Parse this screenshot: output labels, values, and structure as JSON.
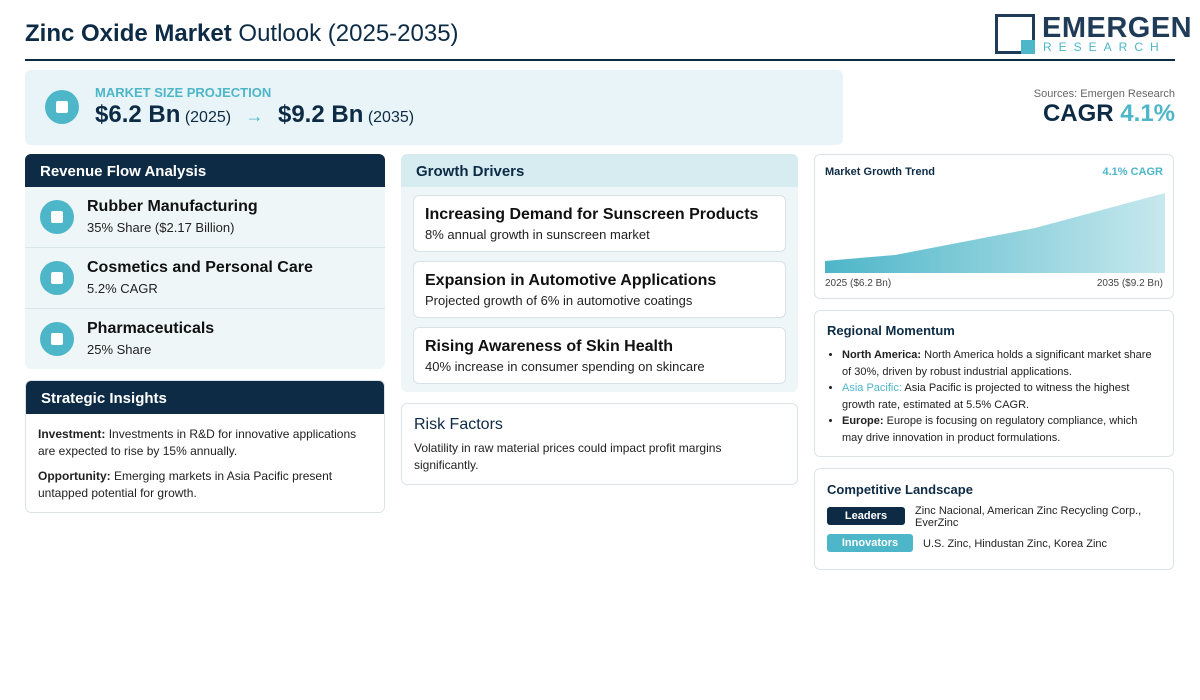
{
  "header": {
    "title_bold": "Zinc Oxide Market",
    "title_rest": "Outlook (2025-2035)"
  },
  "logo": {
    "name": "EMERGEN",
    "tagline": "RESEARCH"
  },
  "projection": {
    "label": "MARKET SIZE PROJECTION",
    "start_value": "$6.2 Bn",
    "start_year": "(2025)",
    "arrow": "→",
    "end_value": "$9.2 Bn",
    "end_year": "(2035)"
  },
  "summary": {
    "sources": "Sources: Emergen Research",
    "cagr_label": "CAGR",
    "cagr_value": "4.1%"
  },
  "revenue": {
    "title": "Revenue Flow Analysis",
    "items": [
      {
        "name": "Rubber Manufacturing",
        "detail": "35% Share ($2.17 Billion)"
      },
      {
        "name": "Cosmetics and Personal Care",
        "detail": "5.2% CAGR"
      },
      {
        "name": "Pharmaceuticals",
        "detail": "25% Share"
      }
    ]
  },
  "insights": {
    "title": "Strategic Insights",
    "items": [
      {
        "label": "Investment:",
        "text": "Investments in R&D for innovative applications are expected to rise by 15% annually."
      },
      {
        "label": "Opportunity:",
        "text": "Emerging markets in Asia Pacific present untapped potential for growth."
      }
    ]
  },
  "drivers": {
    "title": "Growth Drivers",
    "items": [
      {
        "title": "Increasing Demand for Sunscreen Products",
        "text": "8% annual growth in sunscreen market"
      },
      {
        "title": "Expansion in Automotive Applications",
        "text": "Projected growth of 6% in automotive coatings"
      },
      {
        "title": "Rising Awareness of Skin Health",
        "text": "40% increase in consumer spending on skincare"
      }
    ]
  },
  "risk": {
    "title": "Risk Factors",
    "text": "Volatility in raw material prices could impact profit margins significantly."
  },
  "trend": {
    "title": "Market Growth Trend",
    "badge": "4.1% CAGR",
    "start_label": "2025 ($6.2 Bn)",
    "end_label": "2035 ($9.2 Bn)"
  },
  "regional": {
    "title": "Regional Momentum",
    "items": [
      {
        "label": "North America:",
        "text": "North America holds a significant market share of 30%, driven by robust industrial applications."
      },
      {
        "label": "Asia Pacific:",
        "text": "Asia Pacific is projected to witness the highest growth rate, estimated at 5.5% CAGR."
      },
      {
        "label": "Europe:",
        "text": "Europe is focusing on regulatory compliance, which may drive innovation in product formulations."
      }
    ]
  },
  "competitive": {
    "title": "Competitive Landscape",
    "rows": [
      {
        "badge": "Leaders",
        "companies": "Zinc Nacional, American Zinc Recycling Corp., EverZinc"
      },
      {
        "badge": "Innovators",
        "companies": "U.S. Zinc, Hindustan Zinc, Korea Zinc"
      }
    ]
  }
}
